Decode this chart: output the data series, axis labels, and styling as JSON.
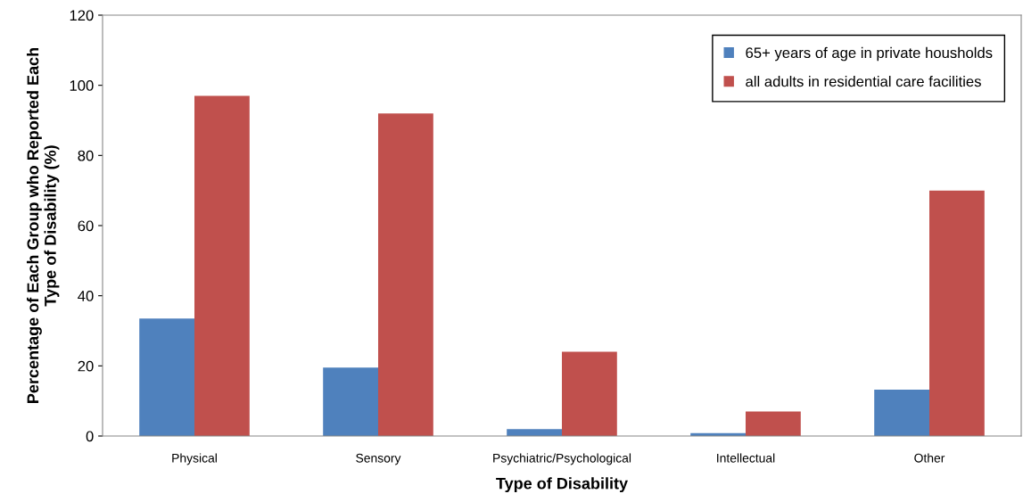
{
  "chart_data": {
    "type": "bar",
    "xlabel": "Type of Disability",
    "ylabel": "Percentage of Each Group who Reported Each\nType of Disability (%)",
    "categories": [
      "Physical",
      "Sensory",
      "Psychiatric/Psychological",
      "Intellectual",
      "Other"
    ],
    "series": [
      {
        "name": "65+ years of age in private housholds",
        "color": "#4f81bd",
        "values": [
          33.5,
          19.5,
          2,
          0.8,
          13.2
        ]
      },
      {
        "name": "all adults in residential care facilities",
        "color": "#c0504d",
        "values": [
          97,
          92,
          24,
          7,
          70
        ]
      }
    ],
    "ylim": [
      0,
      120
    ],
    "yticks": [
      0,
      20,
      40,
      60,
      80,
      100,
      120
    ],
    "grid": false,
    "legend": "top right"
  }
}
